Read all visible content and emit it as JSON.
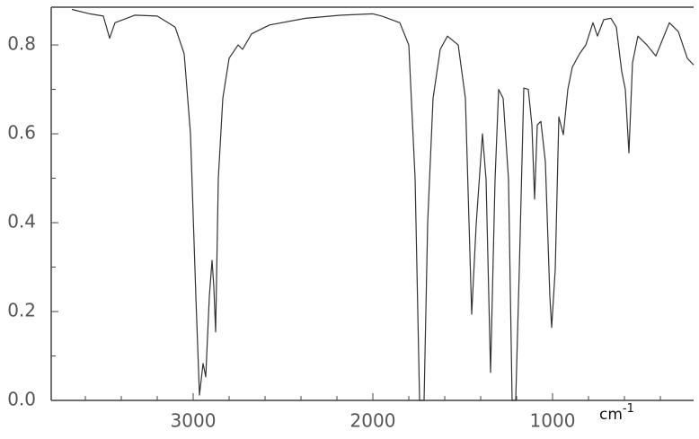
{
  "chart_data": {
    "type": "line",
    "x_label": {
      "base": "cm",
      "sup": "-1"
    },
    "color": "#333333",
    "xlim": [
      3790,
      215
    ],
    "ylim": [
      0,
      0.885
    ],
    "xticks": [
      3000,
      2000,
      1000
    ],
    "xminor_ticks": [
      3600,
      3400,
      3200,
      2800,
      2600,
      2400,
      2200,
      1800,
      1600,
      1400,
      1200,
      800,
      600,
      400
    ],
    "yticks": [
      {
        "value": 0,
        "label": "0.0"
      },
      {
        "value": 0.2,
        "label": "0.2"
      },
      {
        "value": 0.4,
        "label": "0.4"
      },
      {
        "value": 0.6,
        "label": "0.6"
      },
      {
        "value": 0.8,
        "label": "0.8"
      }
    ],
    "yminor_ticks": [
      0.1,
      0.3,
      0.5,
      0.7
    ],
    "x": [
      3675,
      3575,
      3500,
      3465,
      3435,
      3325,
      3200,
      3100,
      3050,
      3015,
      2985,
      2965,
      2945,
      2930,
      2910,
      2895,
      2885,
      2875,
      2860,
      2835,
      2800,
      2750,
      2725,
      2675,
      2575,
      2375,
      2175,
      2000,
      1950,
      1850,
      1800,
      1765,
      1740,
      1715,
      1695,
      1665,
      1625,
      1585,
      1525,
      1485,
      1450,
      1425,
      1390,
      1370,
      1345,
      1320,
      1300,
      1275,
      1245,
      1225,
      1205,
      1185,
      1160,
      1135,
      1115,
      1100,
      1085,
      1065,
      1040,
      1015,
      1005,
      985,
      965,
      940,
      915,
      890,
      850,
      815,
      775,
      750,
      715,
      675,
      645,
      615,
      595,
      575,
      555,
      525,
      475,
      425,
      350,
      300,
      250,
      215
    ],
    "values": [
      0.88,
      0.87,
      0.865,
      0.815,
      0.85,
      0.867,
      0.865,
      0.84,
      0.78,
      0.6,
      0.234,
      0.012,
      0.083,
      0.053,
      0.234,
      0.315,
      0.255,
      0.154,
      0.5,
      0.68,
      0.77,
      0.8,
      0.79,
      0.825,
      0.845,
      0.86,
      0.867,
      0.87,
      0.865,
      0.85,
      0.8,
      0.5,
      0.0,
      0.0,
      0.4,
      0.68,
      0.79,
      0.82,
      0.8,
      0.68,
      0.194,
      0.396,
      0.6,
      0.497,
      0.063,
      0.497,
      0.7,
      0.68,
      0.497,
      0.0,
      0.0,
      0.295,
      0.703,
      0.7,
      0.62,
      0.453,
      0.62,
      0.628,
      0.537,
      0.234,
      0.164,
      0.295,
      0.638,
      0.598,
      0.7,
      0.75,
      0.78,
      0.8,
      0.85,
      0.82,
      0.857,
      0.86,
      0.84,
      0.74,
      0.7,
      0.557,
      0.76,
      0.82,
      0.8,
      0.775,
      0.85,
      0.83,
      0.77,
      0.755
    ]
  }
}
